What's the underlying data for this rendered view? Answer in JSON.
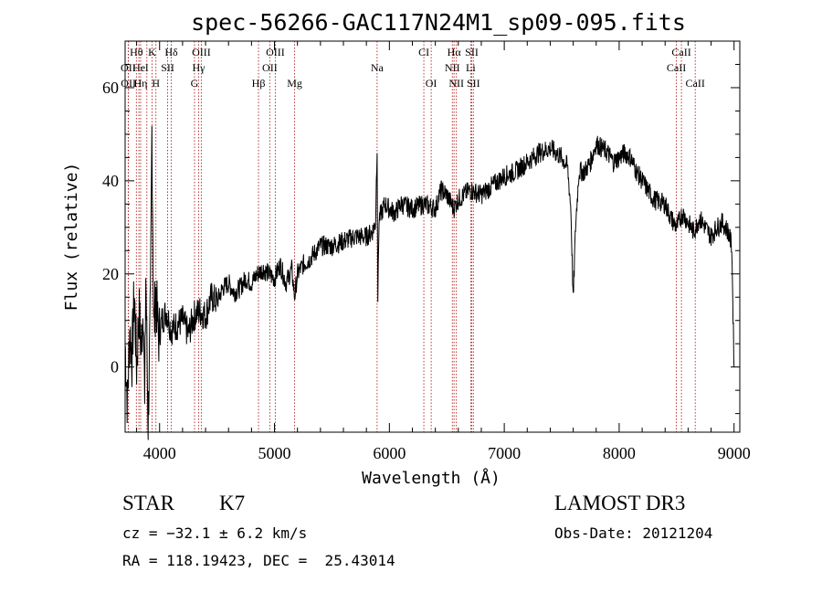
{
  "chart_data": {
    "type": "line",
    "title": "spec-56266-GAC117N24M1_sp09-095.fits",
    "xlabel": "Wavelength (Å)",
    "ylabel": "Flux (relative)",
    "xlim": [
      3700,
      9050
    ],
    "ylim": [
      -14,
      70
    ],
    "xticks": [
      4000,
      5000,
      6000,
      7000,
      8000,
      9000
    ],
    "yticks": [
      0,
      20,
      40,
      60
    ],
    "series": [
      {
        "name": "flux",
        "x": [
          3700,
          3720,
          3740,
          3760,
          3780,
          3800,
          3820,
          3840,
          3860,
          3870,
          3880,
          3900,
          3920,
          3933,
          3950,
          3968,
          3990,
          4020,
          4060,
          4100,
          4150,
          4200,
          4250,
          4300,
          4350,
          4400,
          4450,
          4500,
          4550,
          4600,
          4650,
          4700,
          4750,
          4800,
          4850,
          4900,
          4950,
          5000,
          5050,
          5100,
          5150,
          5175,
          5200,
          5250,
          5300,
          5400,
          5500,
          5600,
          5700,
          5800,
          5850,
          5880,
          5893,
          5900,
          5910,
          5930,
          5960,
          6000,
          6050,
          6100,
          6200,
          6300,
          6400,
          6450,
          6500,
          6560,
          6600,
          6700,
          6800,
          6900,
          7000,
          7100,
          7200,
          7300,
          7400,
          7500,
          7550,
          7580,
          7600,
          7620,
          7650,
          7700,
          7750,
          7800,
          7850,
          7900,
          7950,
          8000,
          8050,
          8100,
          8150,
          8200,
          8300,
          8400,
          8450,
          8500,
          8550,
          8600,
          8650,
          8700,
          8750,
          8800,
          8850,
          8900,
          8950,
          8980,
          9000
        ],
        "y": [
          5,
          -8,
          8,
          2,
          16,
          0,
          12,
          4,
          14,
          -10,
          20,
          -12,
          12,
          51,
          8,
          16,
          6,
          10,
          12,
          8,
          9,
          10,
          7,
          11,
          12,
          11,
          15,
          14,
          17,
          18,
          16,
          17,
          19,
          18,
          20,
          21,
          20,
          19,
          22,
          18,
          21,
          15,
          20,
          22,
          23,
          26,
          26,
          27,
          28,
          28,
          29,
          31,
          48,
          15,
          32,
          33,
          35,
          34,
          33,
          35,
          34,
          35,
          34,
          38,
          37,
          34,
          36,
          38,
          37,
          39,
          41,
          42,
          44,
          46,
          47,
          45,
          43,
          34,
          14,
          30,
          42,
          42,
          44,
          48,
          47,
          46,
          44,
          45,
          46,
          45,
          42,
          40,
          36,
          35,
          32,
          30,
          33,
          31,
          29,
          32,
          30,
          28,
          30,
          31,
          29,
          26,
          0
        ]
      }
    ],
    "lines": [
      {
        "label": "Hθ",
        "x": 3798,
        "row": 0
      },
      {
        "label": "K",
        "x": 3934,
        "row": 0
      },
      {
        "label": "Hδ",
        "x": 4102,
        "row": 0
      },
      {
        "label": "OIII",
        "x": 4363,
        "row": 0
      },
      {
        "label": "OIII",
        "x": 5007,
        "row": 0
      },
      {
        "label": "CI",
        "x": 6300,
        "row": 0
      },
      {
        "label": "Hα",
        "x": 6563,
        "row": 0
      },
      {
        "label": "SII",
        "x": 6717,
        "row": 0
      },
      {
        "label": "CaII",
        "x": 8542,
        "row": 0
      },
      {
        "label": "OII",
        "x": 3727,
        "row": 1
      },
      {
        "label": "He",
        "x": 3820,
        "row": 1
      },
      {
        "label": "I",
        "x": 3889,
        "row": 1
      },
      {
        "label": "SII",
        "x": 4070,
        "row": 1
      },
      {
        "label": "Hγ",
        "x": 4340,
        "row": 1
      },
      {
        "label": "OII",
        "x": 4959,
        "row": 1
      },
      {
        "label": "Na",
        "x": 5893,
        "row": 1
      },
      {
        "label": "NII",
        "x": 6548,
        "row": 1
      },
      {
        "label": "Li",
        "x": 6708,
        "row": 1
      },
      {
        "label": "CaII",
        "x": 8498,
        "row": 1
      },
      {
        "label": "OII",
        "x": 3729,
        "row": 2
      },
      {
        "label": "Hη",
        "x": 3835,
        "row": 2
      },
      {
        "label": "H",
        "x": 3968,
        "row": 2
      },
      {
        "label": "G",
        "x": 4304,
        "row": 2
      },
      {
        "label": "Hβ",
        "x": 4861,
        "row": 2
      },
      {
        "label": "Mg",
        "x": 5175,
        "row": 2
      },
      {
        "label": "OI",
        "x": 6364,
        "row": 2
      },
      {
        "label": "NII",
        "x": 6583,
        "row": 2
      },
      {
        "label": "SII",
        "x": 6731,
        "row": 2
      },
      {
        "label": "CaII",
        "x": 8662,
        "row": 2
      }
    ]
  },
  "info": {
    "class": "STAR",
    "subclass": "K7",
    "survey": "LAMOST DR3",
    "cz": "cz = −32.1 ± 6.2 km/s",
    "obs_date": "Obs-Date: 20121204",
    "radec": "RA = 118.19423, DEC =  25.43014"
  },
  "colors": {
    "line_marker": "#b22222",
    "spectrum": "#000000"
  }
}
